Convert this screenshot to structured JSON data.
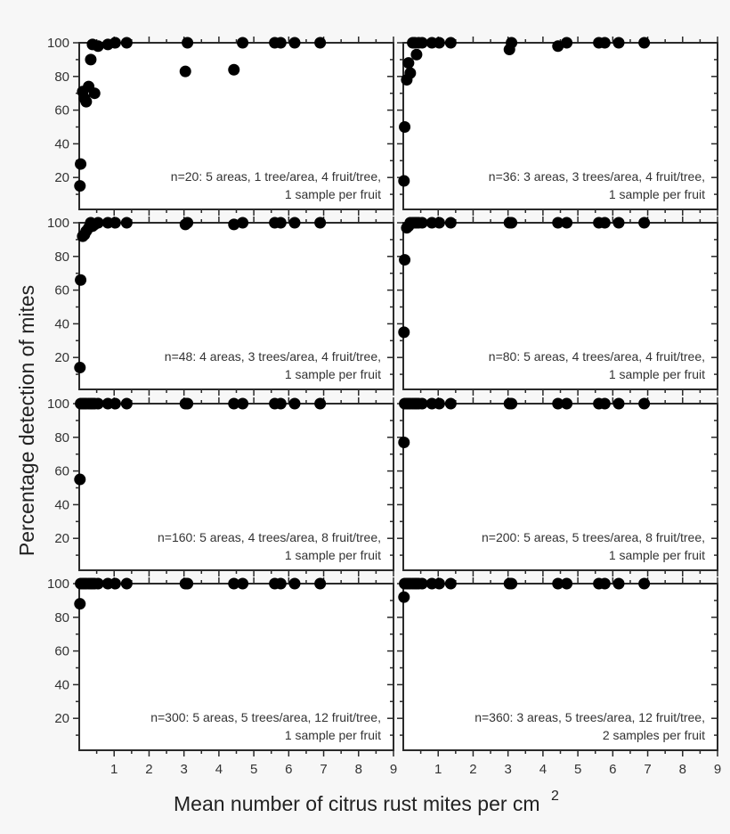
{
  "chart_data": {
    "type": "scatter",
    "layout": "4 rows x 2 columns of panels, shared axes",
    "xlabel": "Mean number of citrus rust mites per cm",
    "xlabel_superscript": "2",
    "ylabel": "Percentage detection of mites",
    "xlim": [
      0,
      9
    ],
    "ylim": [
      0,
      100
    ],
    "x_ticks": [
      "1",
      "2",
      "3",
      "4",
      "5",
      "6",
      "7",
      "8",
      "9"
    ],
    "y_ticks": [
      "20",
      "40",
      "60",
      "80",
      "100"
    ],
    "grid": false,
    "marker_color": "#000000",
    "x": [
      0.02,
      0.04,
      0.1,
      0.15,
      0.2,
      0.27,
      0.33,
      0.38,
      0.44,
      0.54,
      0.82,
      1.03,
      1.36,
      3.04,
      3.1,
      4.43,
      4.68,
      5.6,
      5.77,
      6.17,
      6.9
    ],
    "panels": [
      {
        "annotation": [
          "n=20:  5 areas, 1 tree/area, 4 fruit/tree,",
          "1 sample per fruit"
        ],
        "y": [
          15,
          28,
          71,
          67,
          65,
          74,
          90,
          99,
          70,
          98,
          99,
          100,
          100,
          83,
          100,
          84,
          100,
          100,
          100,
          100,
          100
        ]
      },
      {
        "annotation": [
          "n=36:  3 areas, 3 trees/area, 4 fruit/tree,",
          "1 sample per fruit"
        ],
        "y": [
          18,
          50,
          78,
          88,
          82,
          100,
          100,
          93,
          100,
          100,
          100,
          100,
          100,
          96,
          100,
          98,
          100,
          100,
          100,
          100,
          100
        ]
      },
      {
        "annotation": [
          "n=48:  4 areas, 3 trees/area, 4 fruit/tree,",
          "1 sample per fruit"
        ],
        "y": [
          14,
          66,
          92,
          93,
          95,
          97,
          100,
          98,
          99,
          100,
          100,
          100,
          100,
          99,
          100,
          99,
          100,
          100,
          100,
          100,
          100
        ]
      },
      {
        "annotation": [
          "n=80:  5 areas, 4 trees/area, 4 fruit/tree,",
          "1 sample per fruit"
        ],
        "y": [
          35,
          78,
          97,
          98,
          100,
          100,
          100,
          100,
          100,
          100,
          100,
          100,
          100,
          100,
          100,
          100,
          100,
          100,
          100,
          100,
          100
        ]
      },
      {
        "annotation": [
          "n=160:  5 areas, 4 trees/area, 8 fruit/tree,",
          "1 sample per fruit"
        ],
        "y": [
          55,
          100,
          100,
          100,
          100,
          100,
          100,
          100,
          100,
          100,
          100,
          100,
          100,
          100,
          100,
          100,
          100,
          100,
          100,
          100,
          100
        ]
      },
      {
        "annotation": [
          "n=200:  5 areas, 5 trees/area, 8 fruit/tree,",
          "1 sample per fruit"
        ],
        "y": [
          77,
          100,
          100,
          100,
          100,
          100,
          100,
          100,
          100,
          100,
          100,
          100,
          100,
          100,
          100,
          100,
          100,
          100,
          100,
          100,
          100
        ]
      },
      {
        "annotation": [
          "n=300:  5 areas, 5 trees/area, 12 fruit/tree,",
          "1 sample per fruit"
        ],
        "y": [
          88,
          100,
          100,
          100,
          100,
          100,
          100,
          100,
          100,
          100,
          100,
          100,
          100,
          100,
          100,
          100,
          100,
          100,
          100,
          100,
          100
        ]
      },
      {
        "annotation": [
          "n=360:  3 areas, 5 trees/area, 12 fruit/tree,",
          "2 samples per fruit"
        ],
        "y": [
          92,
          100,
          100,
          100,
          100,
          100,
          100,
          100,
          100,
          100,
          100,
          100,
          100,
          100,
          100,
          100,
          100,
          100,
          100,
          100,
          100
        ]
      }
    ]
  }
}
